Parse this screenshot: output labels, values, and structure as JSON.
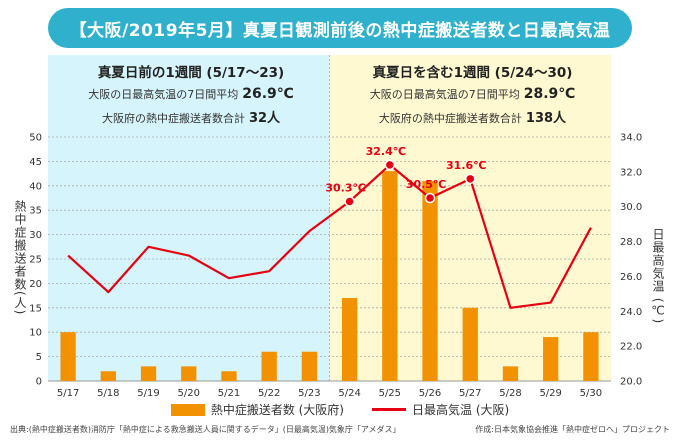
{
  "title": "【大阪/2019年5月】真夏日観測前後の熱中症搬送者数と日最高気温",
  "summary_before": {
    "heading": "真夏日前の1週間 (5/17〜23)",
    "temp_label": "大阪の日最高気温の7日間平均",
    "temp_value": "26.9℃",
    "count_label": "大阪府の熱中症搬送者数合計",
    "count_value": "32人"
  },
  "summary_after": {
    "heading": "真夏日を含む1週間 (5/24〜30)",
    "temp_label": "大阪の日最高気温の7日間平均",
    "temp_value": "28.9℃",
    "count_label": "大阪府の熱中症搬送者数合計",
    "count_value": "138人"
  },
  "colors": {
    "title_bg": "#2fb0cc",
    "before_bg": "#d6f4fb",
    "after_bg": "#fff9d1",
    "bar": "#f39200",
    "line": "#e60012",
    "grid": "#a9a9a9"
  },
  "chart_data": {
    "type": "bar+line",
    "categories": [
      "5/17",
      "5/18",
      "5/19",
      "5/20",
      "5/21",
      "5/22",
      "5/23",
      "5/24",
      "5/25",
      "5/26",
      "5/27",
      "5/28",
      "5/29",
      "5/30"
    ],
    "series": [
      {
        "name": "熱中症搬送者数 (大阪府)",
        "type": "bar",
        "axis": "left",
        "values": [
          10,
          2,
          3,
          3,
          2,
          6,
          6,
          17,
          43,
          41,
          15,
          3,
          9,
          10
        ]
      },
      {
        "name": "日最高気温 (大阪)",
        "type": "line",
        "axis": "right",
        "values": [
          27.2,
          25.1,
          27.7,
          27.2,
          25.9,
          26.3,
          28.6,
          30.3,
          32.4,
          30.5,
          31.6,
          24.2,
          24.5,
          28.8
        ]
      }
    ],
    "annotations": [
      {
        "index": 7,
        "label": "30.3℃"
      },
      {
        "index": 8,
        "label": "32.4℃"
      },
      {
        "index": 9,
        "label": "30.5℃"
      },
      {
        "index": 10,
        "label": "31.6℃"
      }
    ],
    "ylabel_left": "熱中症搬送者数(人)",
    "ylabel_right": "日最高気温 (℃)",
    "ylim_left": [
      0,
      50
    ],
    "yticks_left": [
      "0",
      "5",
      "10",
      "15",
      "20",
      "25",
      "30",
      "35",
      "40",
      "45",
      "50"
    ],
    "ylim_right": [
      20,
      34
    ],
    "yticks_right": [
      "20.0",
      "22.0",
      "24.0",
      "26.0",
      "28.0",
      "30.0",
      "32.0",
      "34.0"
    ],
    "grid": true,
    "legend_position": "bottom"
  },
  "footer": {
    "source": "出典:(熱中症搬送者数)消防庁「熱中症による救急搬送人員に関するデータ」(日最高気温)気象庁「アメダス」",
    "credit": "作成:日本気象協会推進「熱中症ゼロへ」プロジェクト"
  }
}
